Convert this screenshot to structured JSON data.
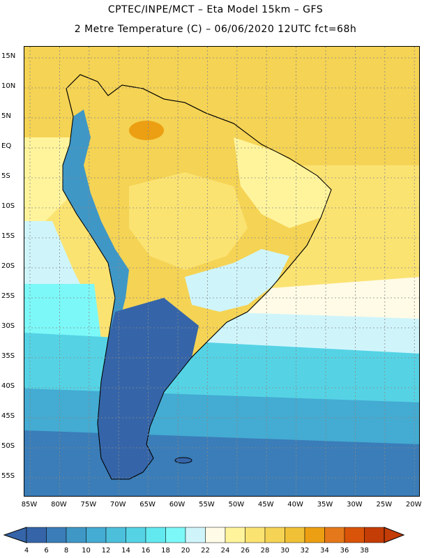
{
  "header": {
    "line1": "CPTEC/INPE/MCT –  Eta Model 15km – GFS",
    "line2": "2 Metre Temperature (C) – 06/06/2020 12UTC fct=68h"
  },
  "axes": {
    "lat_labels": [
      "15N",
      "10N",
      "5N",
      "EQ",
      "5S",
      "10S",
      "15S",
      "20S",
      "25S",
      "30S",
      "35S",
      "40S",
      "45S",
      "50S",
      "55S"
    ],
    "lon_labels": [
      "85W",
      "80W",
      "75W",
      "70W",
      "65W",
      "60W",
      "55W",
      "50W",
      "45W",
      "40W",
      "35W",
      "30W",
      "25W",
      "20W"
    ]
  },
  "legend": {
    "labels": [
      "4",
      "6",
      "8",
      "10",
      "12",
      "14",
      "16",
      "18",
      "20",
      "22",
      "24",
      "26",
      "28",
      "30",
      "32",
      "34",
      "36",
      "38"
    ],
    "colors": [
      "#3565a8",
      "#3a7db8",
      "#3f97c6",
      "#44abd2",
      "#4cbfdb",
      "#55d3e5",
      "#62e9ef",
      "#7cf8f8",
      "#cff5fb",
      "#fffbe6",
      "#fff49c",
      "#fbe372",
      "#f5d354",
      "#f0c137",
      "#ec9f12",
      "#e5781a",
      "#d95309",
      "#c43c06"
    ],
    "under_color": "#3565a8",
    "over_color": "#c43c06"
  },
  "map": {
    "ocean_colors": {
      "tropical_atlantic": "#f5d354",
      "subtropical_atlantic": "#fbe372",
      "pacific_north": "#fff49c",
      "pacific_20s": "#cff5fb",
      "pacific_30s": "#7cf8f8",
      "pacific_40s": "#4cbfdb",
      "southern_ocean": "#3a7db8"
    },
    "land_colors": {
      "amazon": "#f5d354",
      "north": "#fbe372",
      "northeast": "#fff49c",
      "andes": "#3f97c6",
      "patagonia": "#3565a8",
      "southeast": "#cff5fb"
    }
  }
}
